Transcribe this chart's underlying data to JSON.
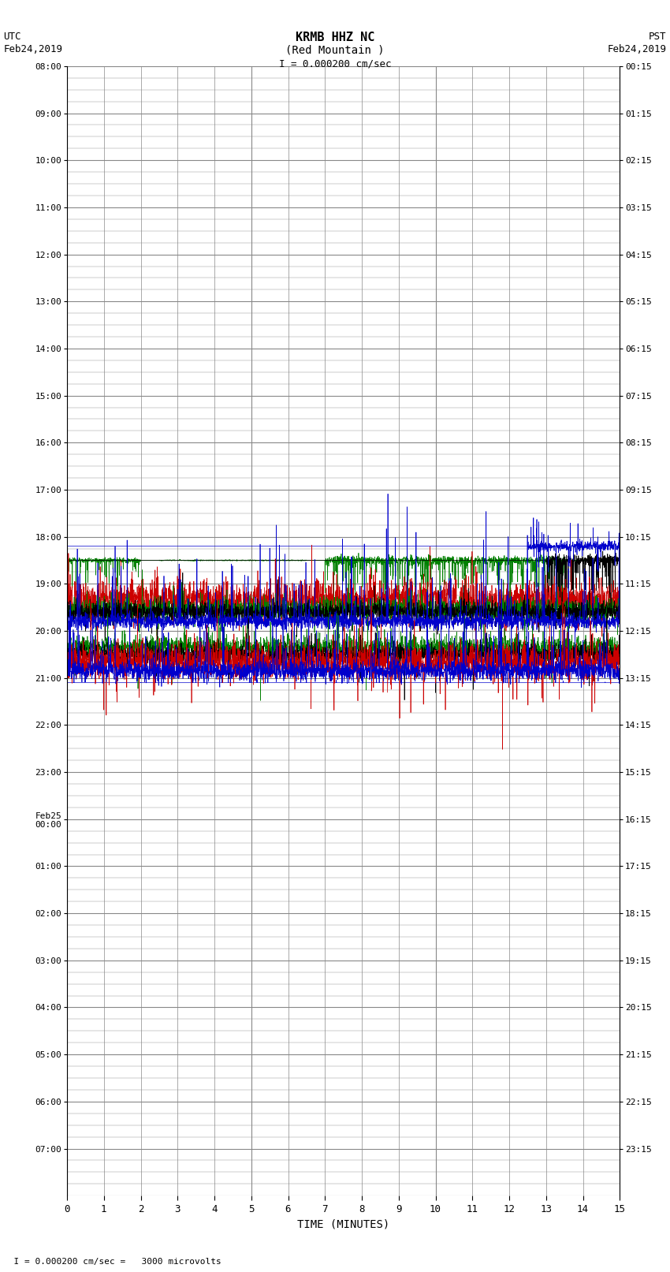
{
  "title_line1": "KRMB HHZ NC",
  "title_line2": "(Red Mountain )",
  "scale_label": "I = 0.000200 cm/sec",
  "left_label_line1": "UTC",
  "left_label_line2": "Feb24,2019",
  "right_label_line1": "PST",
  "right_label_line2": "Feb24,2019",
  "bottom_label": "TIME (MINUTES)",
  "bottom_note": "  I = 0.000200 cm/sec =   3000 microvolts",
  "utc_times": [
    "08:00",
    "09:00",
    "10:00",
    "11:00",
    "12:00",
    "13:00",
    "14:00",
    "15:00",
    "16:00",
    "17:00",
    "18:00",
    "19:00",
    "20:00",
    "21:00",
    "22:00",
    "23:00",
    "Feb25\n00:00",
    "01:00",
    "02:00",
    "03:00",
    "04:00",
    "05:00",
    "06:00",
    "07:00"
  ],
  "pst_times": [
    "00:15",
    "01:15",
    "02:15",
    "03:15",
    "04:15",
    "05:15",
    "06:15",
    "07:15",
    "08:15",
    "09:15",
    "10:15",
    "11:15",
    "12:15",
    "13:15",
    "14:15",
    "15:15",
    "16:15",
    "17:15",
    "18:15",
    "19:15",
    "20:15",
    "21:15",
    "22:15",
    "23:15"
  ],
  "n_rows": 24,
  "minutes_per_row": 15,
  "bg_color": "#ffffff",
  "grid_color": "#888888",
  "signal_color_green": "#008000",
  "signal_color_red": "#cc0000",
  "signal_color_blue": "#0000cc",
  "signal_color_black": "#000000",
  "figsize": [
    8.5,
    16.13
  ]
}
